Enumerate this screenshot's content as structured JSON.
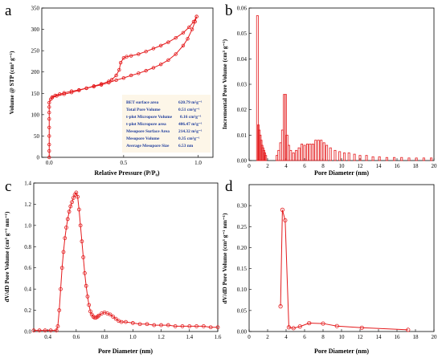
{
  "panel_letters": [
    "a",
    "b",
    "c",
    "d"
  ],
  "colors": {
    "series": "#e41a1c",
    "table_text": "#1f3d9c",
    "table_bg": "#fdf6e8"
  },
  "bet_table": {
    "rows": [
      {
        "label": "BET surface area",
        "value": "620.79 m²g⁻¹"
      },
      {
        "label": "Total Pore Volume",
        "value": "0.51 cm³g⁻¹"
      },
      {
        "label": "t-plot Micropore Volume",
        "value": "0.16 cm³g⁻¹"
      },
      {
        "label": "t-plot Micropore area",
        "value": "406.47 m²g⁻¹"
      },
      {
        "label": "Mesopore Surface Area",
        "value": "214.32 m²g⁻¹"
      },
      {
        "label": "Mesopore Volume",
        "value": "0.35 cm³g⁻¹"
      },
      {
        "label": "Average Mesopore Size",
        "value": "6.53 nm"
      }
    ]
  },
  "chart_data": [
    {
      "panel": "a",
      "type": "line",
      "xlabel": "Relative Pressure (P/P₀)",
      "ylabel": "Volume @ STP (cm³ g⁻¹)",
      "xlim": [
        -0.05,
        1.1
      ],
      "ylim": [
        0,
        350
      ],
      "xticks": [
        "0.0",
        "0.5",
        "1.0"
      ],
      "yticks": [
        "0",
        "50",
        "100",
        "150",
        "200",
        "250",
        "300",
        "350"
      ],
      "series": [
        {
          "role": "adsorption",
          "x": [
            0.0,
            0.0,
            0.0,
            0.0,
            0.0,
            0.0,
            0.0,
            0.0,
            0.0,
            0.01,
            0.02,
            0.04,
            0.07,
            0.1,
            0.15,
            0.2,
            0.25,
            0.3,
            0.35,
            0.4,
            0.45,
            0.5,
            0.55,
            0.6,
            0.65,
            0.7,
            0.75,
            0.8,
            0.85,
            0.9,
            0.93,
            0.96,
            0.98,
            0.99
          ],
          "y": [
            0,
            15,
            30,
            50,
            70,
            90,
            105,
            118,
            128,
            136,
            141,
            145,
            148,
            151,
            155,
            158,
            162,
            166,
            170,
            175,
            181,
            186,
            192,
            197,
            203,
            210,
            218,
            228,
            242,
            262,
            278,
            300,
            318,
            330
          ]
        },
        {
          "role": "desorption",
          "x": [
            0.99,
            0.97,
            0.94,
            0.9,
            0.85,
            0.8,
            0.75,
            0.7,
            0.65,
            0.6,
            0.55,
            0.52,
            0.5,
            0.48,
            0.47,
            0.45,
            0.42,
            0.4,
            0.35,
            0.3,
            0.25,
            0.2,
            0.15,
            0.1,
            0.05,
            0.02
          ],
          "y": [
            330,
            318,
            305,
            292,
            280,
            270,
            262,
            255,
            248,
            242,
            238,
            236,
            233,
            222,
            205,
            192,
            182,
            178,
            172,
            167,
            162,
            157,
            152,
            148,
            144,
            140
          ]
        }
      ]
    },
    {
      "panel": "b",
      "type": "bar",
      "xlabel": "Pore Diameter (nm)",
      "ylabel": "Incremental Pore Volume (cm³ g⁻¹)",
      "xlim": [
        0,
        20
      ],
      "ylim": [
        0,
        0.06
      ],
      "xticks": [
        "0",
        "2",
        "4",
        "6",
        "8",
        "10",
        "12",
        "14",
        "16",
        "18",
        "20"
      ],
      "yticks": [
        "0.00",
        "0.01",
        "0.02",
        "0.03",
        "0.04",
        "0.05",
        "0.06"
      ],
      "bars": [
        [
          0.9,
          0.057
        ],
        [
          1.0,
          0.014
        ],
        [
          1.1,
          0.012
        ],
        [
          1.2,
          0.01
        ],
        [
          1.3,
          0.008
        ],
        [
          1.4,
          0.006
        ],
        [
          1.5,
          0.005
        ],
        [
          1.6,
          0.004
        ],
        [
          1.7,
          0.003
        ],
        [
          1.8,
          0.002
        ],
        [
          3.0,
          0.002
        ],
        [
          3.2,
          0.004
        ],
        [
          3.4,
          0.007
        ],
        [
          3.6,
          0.012
        ],
        [
          3.8,
          0.026
        ],
        [
          3.95,
          0.026
        ],
        [
          4.1,
          0.01
        ],
        [
          4.3,
          0.006
        ],
        [
          4.5,
          0.004
        ],
        [
          4.8,
          0.003
        ],
        [
          5.1,
          0.004
        ],
        [
          5.4,
          0.005
        ],
        [
          5.7,
          0.0065
        ],
        [
          6.0,
          0.006
        ],
        [
          6.3,
          0.0065
        ],
        [
          6.6,
          0.0065
        ],
        [
          6.9,
          0.0065
        ],
        [
          7.2,
          0.008
        ],
        [
          7.5,
          0.008
        ],
        [
          7.8,
          0.008
        ],
        [
          8.1,
          0.007
        ],
        [
          8.4,
          0.006
        ],
        [
          8.8,
          0.005
        ],
        [
          9.3,
          0.004
        ],
        [
          9.8,
          0.0035
        ],
        [
          10.3,
          0.003
        ],
        [
          10.8,
          0.003
        ],
        [
          11.4,
          0.0025
        ],
        [
          12.0,
          0.002
        ],
        [
          12.7,
          0.002
        ],
        [
          13.4,
          0.0015
        ],
        [
          14.1,
          0.0015
        ],
        [
          14.9,
          0.0012
        ],
        [
          15.7,
          0.0012
        ],
        [
          16.5,
          0.0012
        ],
        [
          17.3,
          0.001
        ],
        [
          18.1,
          0.001
        ],
        [
          18.9,
          0.001
        ],
        [
          19.7,
          0.001
        ]
      ]
    },
    {
      "panel": "c",
      "type": "line",
      "xlabel": "Pore Diameter (nm)",
      "ylabel": "dV/dD Pore Volume (cm³ g⁻¹ nm⁻¹)",
      "xlim": [
        0.3,
        1.6
      ],
      "ylim": [
        0,
        1.4
      ],
      "xticks": [
        "0.4",
        "0.6",
        "0.8",
        "1.0",
        "1.2",
        "1.4",
        "1.6"
      ],
      "yticks": [
        "0.0",
        "0.2",
        "0.4",
        "0.6",
        "0.8",
        "1.0",
        "1.2",
        "1.4"
      ],
      "x": [
        0.3,
        0.34,
        0.38,
        0.42,
        0.46,
        0.47,
        0.48,
        0.49,
        0.5,
        0.51,
        0.52,
        0.53,
        0.54,
        0.55,
        0.56,
        0.57,
        0.58,
        0.59,
        0.6,
        0.61,
        0.62,
        0.63,
        0.64,
        0.65,
        0.66,
        0.67,
        0.68,
        0.69,
        0.7,
        0.71,
        0.72,
        0.73,
        0.74,
        0.75,
        0.76,
        0.78,
        0.8,
        0.82,
        0.84,
        0.86,
        0.88,
        0.9,
        0.92,
        0.95,
        1.0,
        1.05,
        1.1,
        1.15,
        1.2,
        1.25,
        1.3,
        1.35,
        1.4,
        1.45,
        1.5,
        1.55,
        1.6
      ],
      "y": [
        0.01,
        0.01,
        0.01,
        0.01,
        0.01,
        0.05,
        0.2,
        0.4,
        0.6,
        0.75,
        0.88,
        0.98,
        1.06,
        1.13,
        1.18,
        1.22,
        1.26,
        1.29,
        1.31,
        1.27,
        1.15,
        1.0,
        0.85,
        0.7,
        0.55,
        0.43,
        0.33,
        0.25,
        0.19,
        0.16,
        0.14,
        0.13,
        0.13,
        0.14,
        0.15,
        0.17,
        0.18,
        0.17,
        0.16,
        0.14,
        0.12,
        0.1,
        0.09,
        0.09,
        0.08,
        0.07,
        0.07,
        0.06,
        0.06,
        0.06,
        0.05,
        0.05,
        0.05,
        0.05,
        0.05,
        0.04,
        0.04
      ]
    },
    {
      "panel": "d",
      "type": "line",
      "xlabel": "Pore Diameter (nm)",
      "ylabel": "dV/dD Pore Volume (cm³ g⁻¹ nm⁻¹)",
      "xlim": [
        0,
        20
      ],
      "ylim": [
        0,
        0.35
      ],
      "xticks": [
        "0",
        "2",
        "4",
        "6",
        "8",
        "10",
        "12",
        "14",
        "16",
        "18",
        "20"
      ],
      "yticks": [
        "0.00",
        "0.05",
        "0.10",
        "0.15",
        "0.20",
        "0.25",
        "0.30"
      ],
      "x": [
        3.4,
        3.6,
        3.9,
        4.3,
        4.8,
        5.5,
        6.5,
        8.0,
        9.5,
        12.2,
        17.2
      ],
      "y": [
        0.06,
        0.29,
        0.265,
        0.01,
        0.008,
        0.012,
        0.02,
        0.019,
        0.013,
        0.009,
        0.004
      ]
    }
  ]
}
